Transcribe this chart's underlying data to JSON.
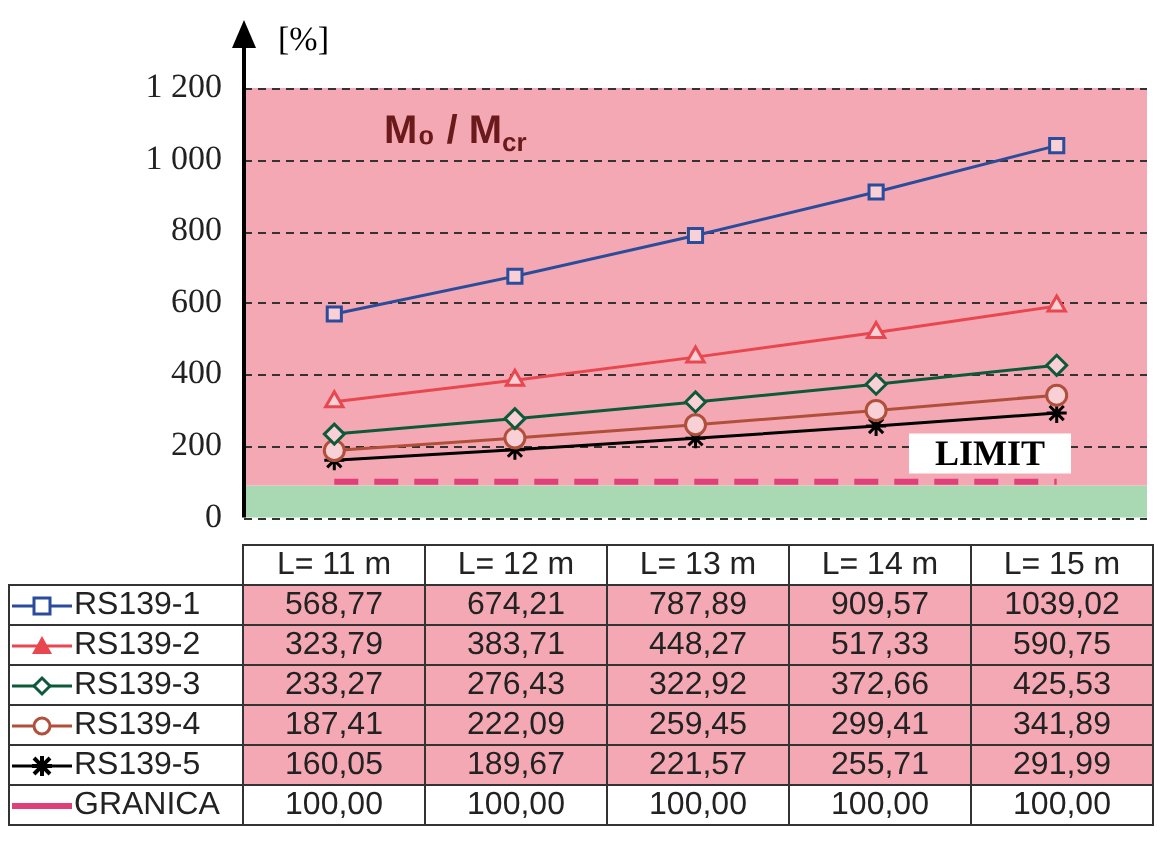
{
  "chart_data": {
    "type": "line",
    "title": "M₀ / M$_{cr}$",
    "ylabel": "[%]",
    "categories": [
      "L= 11 m",
      "L= 12 m",
      "L= 13 m",
      "L= 14 m",
      "L= 15 m"
    ],
    "series": [
      {
        "name": "RS139-1",
        "color": "#2b4c9b",
        "marker": "square",
        "values": [
          568.77,
          674.21,
          787.89,
          909.57,
          1039.02
        ],
        "value_labels": [
          "568,77",
          "674,21",
          "787,89",
          "909,57",
          "1039,02"
        ]
      },
      {
        "name": "RS139-2",
        "color": "#e8474f",
        "marker": "triangle",
        "values": [
          323.79,
          383.71,
          448.27,
          517.33,
          590.75
        ],
        "value_labels": [
          "323,79",
          "383,71",
          "448,27",
          "517,33",
          "590,75"
        ]
      },
      {
        "name": "RS139-3",
        "color": "#0d5a3a",
        "marker": "diamond",
        "values": [
          233.27,
          276.43,
          322.92,
          372.66,
          425.53
        ],
        "value_labels": [
          "233,27",
          "276,43",
          "322,92",
          "372,66",
          "425,53"
        ]
      },
      {
        "name": "RS139-4",
        "color": "#b0503a",
        "marker": "circle",
        "values": [
          187.41,
          222.09,
          259.45,
          299.41,
          341.89
        ],
        "value_labels": [
          "187,41",
          "222,09",
          "259,45",
          "299,41",
          "341,89"
        ]
      },
      {
        "name": "RS139-5",
        "color": "#000000",
        "marker": "cross",
        "values": [
          160.05,
          189.67,
          221.57,
          255.71,
          291.99
        ],
        "value_labels": [
          "160,05",
          "189,67",
          "221,57",
          "255,71",
          "291,99"
        ]
      },
      {
        "name": "GRANICA",
        "color": "#e0407a",
        "marker": "none",
        "line_style": "dashed",
        "values": [
          100,
          100,
          100,
          100,
          100
        ],
        "value_labels": [
          "100,00",
          "100,00",
          "100,00",
          "100,00",
          "100,00"
        ]
      }
    ],
    "ylim": [
      0,
      1200
    ],
    "yticks": [
      0,
      200,
      400,
      600,
      800,
      {
        "value": 1000,
        "label": "1 000"
      },
      {
        "value": 1200,
        "label": "1 200"
      }
    ],
    "bands": [
      {
        "axis": "y",
        "from": 0,
        "to": 90,
        "color": "#a9d9b2"
      },
      {
        "axis": "y",
        "from": 90,
        "to": 1200,
        "color": "#f3a8b3"
      }
    ],
    "annotations": [
      "LIMIT"
    ],
    "grid": "y",
    "legend": "bottom left"
  }
}
